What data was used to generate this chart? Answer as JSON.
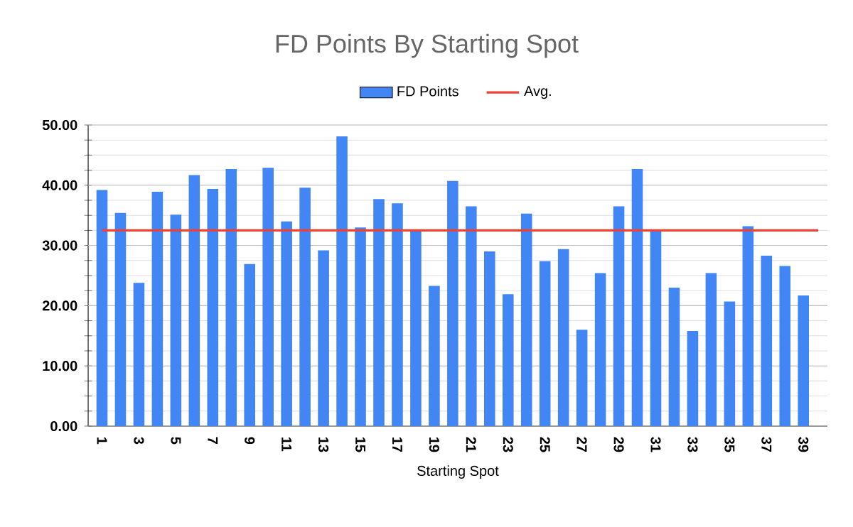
{
  "chart_data": {
    "type": "bar",
    "title": "FD Points By Starting Spot",
    "xlabel": "Starting Spot",
    "categories": [
      "1",
      null,
      "3",
      null,
      "5",
      null,
      "7",
      null,
      "9",
      null,
      "11",
      null,
      "13",
      null,
      "15",
      null,
      "17",
      null,
      "19",
      null,
      "21",
      null,
      "23",
      null,
      "25",
      null,
      "27",
      null,
      "29",
      null,
      "31",
      null,
      "33",
      null,
      "35",
      null,
      "37",
      null,
      "39"
    ],
    "series": [
      {
        "name": "FD Points",
        "color": "#4285f4",
        "values": [
          39.2,
          35.4,
          23.8,
          38.9,
          35.1,
          41.7,
          39.4,
          42.7,
          26.9,
          42.9,
          34.0,
          39.6,
          29.2,
          48.1,
          33.0,
          37.7,
          37.0,
          32.5,
          23.3,
          40.7,
          36.5,
          29.0,
          21.9,
          35.3,
          27.4,
          29.4,
          16.0,
          25.4,
          36.5,
          42.7,
          32.3,
          23.0,
          15.8,
          25.4,
          20.7,
          33.2,
          28.3,
          26.6,
          21.7
        ]
      }
    ],
    "ref_lines": [
      {
        "axis": "y",
        "value": 32.5,
        "label": "Avg.",
        "color": "#ea4335"
      }
    ],
    "ylim": [
      0,
      50
    ],
    "yticks": [
      {
        "value": 0,
        "label": "0.00"
      },
      {
        "value": 2.5,
        "label": null
      },
      {
        "value": 5,
        "label": null
      },
      {
        "value": 7.5,
        "label": null
      },
      {
        "value": 10,
        "label": "10.00"
      },
      {
        "value": 12.5,
        "label": null
      },
      {
        "value": 15,
        "label": null
      },
      {
        "value": 17.5,
        "label": null
      },
      {
        "value": 20,
        "label": "20.00"
      },
      {
        "value": 22.5,
        "label": null
      },
      {
        "value": 25,
        "label": null
      },
      {
        "value": 27.5,
        "label": null
      },
      {
        "value": 30,
        "label": "30.00"
      },
      {
        "value": 32.5,
        "label": null
      },
      {
        "value": 35,
        "label": null
      },
      {
        "value": 37.5,
        "label": null
      },
      {
        "value": 40,
        "label": "40.00"
      },
      {
        "value": 42.5,
        "label": null
      },
      {
        "value": 45,
        "label": null
      },
      {
        "value": 47.5,
        "label": null
      },
      {
        "value": 50,
        "label": "50.00"
      }
    ],
    "grid": true,
    "legend": "top"
  }
}
